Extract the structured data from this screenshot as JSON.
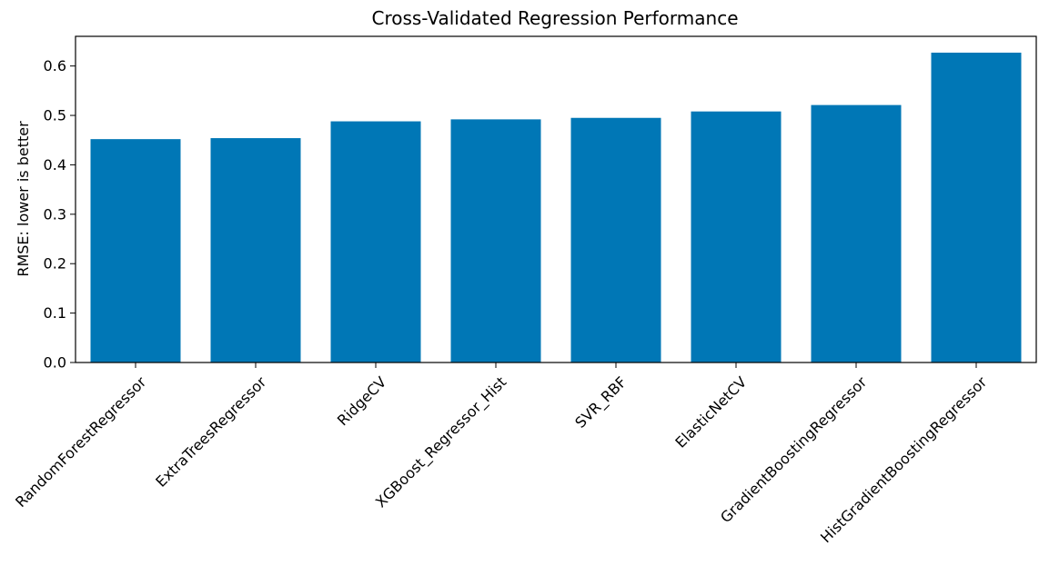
{
  "chart_data": {
    "type": "bar",
    "title": "Cross-Validated Regression Performance",
    "xlabel": "",
    "ylabel": "RMSE: lower is better",
    "categories": [
      "RandomForestRegressor",
      "ExtraTreesRegressor",
      "RidgeCV",
      "XGBoost_Regressor_Hist",
      "SVR_RBF",
      "ElasticNetCV",
      "GradientBoostingRegressor",
      "HistGradientBoostingRegressor"
    ],
    "values": [
      0.452,
      0.454,
      0.488,
      0.492,
      0.495,
      0.508,
      0.521,
      0.627
    ],
    "ylim": [
      0,
      0.66
    ],
    "yticks": [
      0.0,
      0.1,
      0.2,
      0.3,
      0.4,
      0.5,
      0.6
    ],
    "ytick_labels": [
      "0.0",
      "0.1",
      "0.2",
      "0.3",
      "0.4",
      "0.5",
      "0.6"
    ],
    "bar_color": "#0077b6",
    "grid": false,
    "legend": "none"
  }
}
